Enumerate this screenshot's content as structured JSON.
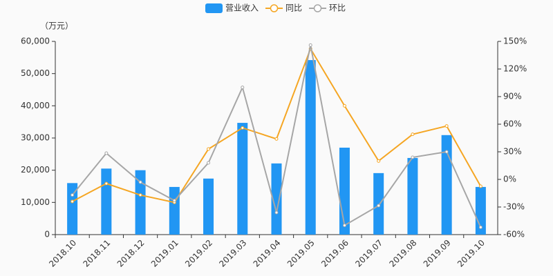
{
  "chart_data": {
    "type": "bar-line",
    "unit_label": "（万元）",
    "categories": [
      "2018.10",
      "2018.11",
      "2018.12",
      "2019.01",
      "2019.02",
      "2019.03",
      "2019.04",
      "2019.05",
      "2019.06",
      "2019.07",
      "2019.08",
      "2019.09",
      "2019.10"
    ],
    "series": [
      {
        "name": "营业收入",
        "type": "bar",
        "color": "#2196f3",
        "values": [
          16000,
          20500,
          20000,
          14800,
          17400,
          34700,
          22100,
          54200,
          27000,
          19100,
          23800,
          30900,
          14800
        ]
      },
      {
        "name": "同比",
        "type": "line",
        "axis": "y2",
        "color": "#f5a623",
        "values": [
          -24,
          -4.5,
          -17,
          -25,
          33,
          56,
          44,
          142,
          80,
          20,
          49,
          58,
          -7.5
        ]
      },
      {
        "name": "环比",
        "type": "line",
        "axis": "y2",
        "color": "#a6a6a6",
        "values": [
          -17,
          28.5,
          -3,
          -23,
          18,
          100,
          -36,
          146,
          -50,
          -28.5,
          24,
          30,
          -52
        ]
      }
    ],
    "ylim": [
      0,
      60000
    ],
    "yticks": [
      0,
      {
        "value": 10000,
        "label": "10,000"
      },
      {
        "value": 20000,
        "label": "20,000"
      },
      {
        "value": 30000,
        "label": "30,000"
      },
      {
        "value": 40000,
        "label": "40,000"
      },
      {
        "value": 50000,
        "label": "50,000"
      },
      {
        "value": 60000,
        "label": "60,000"
      }
    ],
    "y2lim": [
      -60,
      150
    ],
    "y2ticks": [
      {
        "value": -60,
        "label": "-60%"
      },
      {
        "value": -30,
        "label": "-30%"
      },
      {
        "value": 0,
        "label": "0%"
      },
      {
        "value": 30,
        "label": "30%"
      },
      {
        "value": 60,
        "label": "60%"
      },
      {
        "value": 90,
        "label": "90%"
      },
      {
        "value": 120,
        "label": "120%"
      },
      {
        "value": 150,
        "label": "150%"
      }
    ]
  }
}
